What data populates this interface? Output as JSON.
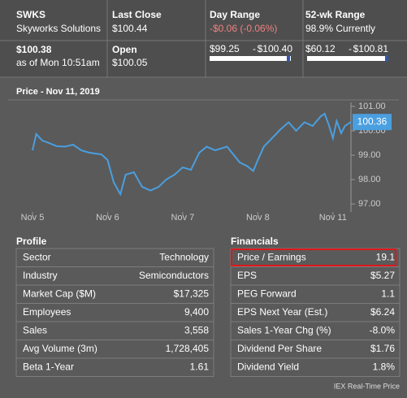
{
  "header": [
    {
      "title": "SWKS",
      "subtitle": "Skyworks Solutions",
      "value": "$100.38",
      "note": "as of Mon 10:51am"
    },
    {
      "title": "Last Close",
      "subtitle": "$100.44",
      "value": "Open",
      "note": "$100.05"
    },
    {
      "title": "Day Range",
      "subtitle": "-$0.06 (-0.06%)",
      "low": "$99.25",
      "separator": "-",
      "high": "$100.40"
    },
    {
      "title": "52-wk Range",
      "subtitle": "98.9% Currently",
      "low": "$60.12",
      "separator": "-",
      "high": "$100.81"
    }
  ],
  "chart_data": {
    "type": "line",
    "title": "Price - Nov 11, 2019",
    "color": "#4a9fe0",
    "x": [
      0,
      0.05,
      0.13,
      0.22,
      0.32,
      0.43,
      0.54,
      0.65,
      0.76,
      0.92,
      1.0,
      1.08,
      1.17,
      1.24,
      1.35,
      1.46,
      1.57,
      1.68,
      1.78,
      1.89,
      2.0,
      2.11,
      2.22,
      2.32,
      2.43,
      2.59,
      2.76,
      2.86,
      2.94,
      3.0,
      3.08,
      3.19,
      3.3,
      3.41,
      3.51,
      3.62,
      3.73,
      3.84,
      3.89,
      3.95,
      4.0,
      4.05,
      4.11,
      4.16,
      4.24
    ],
    "values": [
      99.2,
      99.87,
      99.6,
      99.5,
      99.37,
      99.35,
      99.43,
      99.2,
      99.1,
      99.03,
      98.8,
      97.9,
      97.4,
      98.2,
      98.3,
      97.7,
      97.55,
      97.7,
      98.0,
      98.2,
      98.5,
      98.4,
      99.1,
      99.35,
      99.2,
      99.35,
      98.7,
      98.55,
      98.35,
      98.8,
      99.35,
      99.7,
      100.05,
      100.35,
      100.0,
      100.35,
      100.2,
      100.6,
      100.7,
      100.2,
      99.7,
      100.4,
      99.9,
      100.2,
      100.36
    ],
    "xlim": [
      0,
      4.24
    ],
    "xticks": [
      {
        "value": 0,
        "label": "Nov 5"
      },
      {
        "value": 1,
        "label": "Nov 6"
      },
      {
        "value": 2,
        "label": "Nov 7"
      },
      {
        "value": 3,
        "label": "Nov 8"
      },
      {
        "value": 4,
        "label": "Nov 11"
      }
    ],
    "ylim": [
      96.67,
      101.0
    ],
    "yticks": [
      {
        "value": 101,
        "label": "101.00"
      },
      {
        "value": 100,
        "label": "100.00"
      },
      {
        "value": 99,
        "label": "99.00"
      },
      {
        "value": 98,
        "label": "98.00"
      },
      {
        "value": 97,
        "label": "97.00"
      }
    ],
    "grid": false
  },
  "profile": {
    "title": "Profile",
    "rows": [
      [
        "Sector",
        "Technology"
      ],
      [
        "Industry",
        "Semiconductors"
      ],
      [
        "Market Cap ($M)",
        "$17,325"
      ],
      [
        "Employees",
        "9,400"
      ],
      [
        "Sales",
        "3,558"
      ],
      [
        "Avg Volume (3m)",
        "1,728,405"
      ],
      [
        "Beta 1-Year",
        "1.61"
      ]
    ]
  },
  "financials": {
    "title": "Financials",
    "rows": [
      [
        "Price / Earnings",
        "19.1"
      ],
      [
        "EPS",
        "$5.27"
      ],
      [
        "PEG Forward",
        "1.1"
      ],
      [
        "EPS Next Year (Est.)",
        "$6.24"
      ],
      [
        "Sales 1-Year Chg (%)",
        "-8.0%"
      ],
      [
        "Dividend Per Share",
        "$1.76"
      ],
      [
        "Dividend Yield",
        "1.8%"
      ]
    ]
  },
  "footer": "IEX Real-Time Price"
}
